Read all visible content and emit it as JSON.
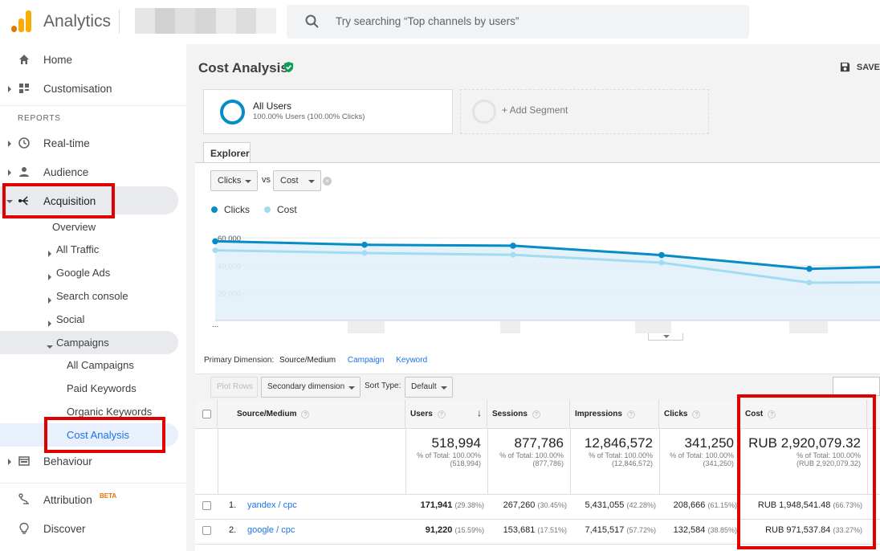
{
  "app": {
    "title": "Analytics",
    "search_placeholder": "Try searching “Top channels by users”"
  },
  "sidebar": {
    "home": "Home",
    "customisation": "Customisation",
    "reports_heading": "REPORTS",
    "realtime": "Real-time",
    "audience": "Audience",
    "acquisition": "Acquisition",
    "overview": "Overview",
    "all_traffic": "All Traffic",
    "google_ads": "Google Ads",
    "search_console": "Search console",
    "social": "Social",
    "campaigns": "Campaigns",
    "all_campaigns": "All Campaigns",
    "paid_keywords": "Paid Keywords",
    "organic_keywords": "Organic Keywords",
    "cost_analysis": "Cost Analysis",
    "behaviour": "Behaviour",
    "attribution": "Attribution",
    "attribution_badge": "BETA",
    "discover": "Discover"
  },
  "header": {
    "title": "Cost Analysis",
    "save": "SAVE"
  },
  "segments": {
    "all_users": "All Users",
    "all_users_sub": "100.00% Users (100.00% Clicks)",
    "add_segment": "+ Add Segment"
  },
  "explorer": {
    "tab": "Explorer",
    "metric1": "Clicks",
    "vs": "vs",
    "metric2": "Cost",
    "legend1": "Clicks",
    "legend2": "Cost",
    "ellipsis": "..."
  },
  "colors": {
    "clicks": "#058dc7",
    "cost": "#a2dcf0",
    "brand_orange": "#f9ab00",
    "highlight": "#e00000"
  },
  "chart_data": {
    "type": "line",
    "y_ticks": [
      "60,000",
      "40,000",
      "20,000"
    ],
    "ylim": [
      0,
      70000
    ],
    "series": [
      {
        "name": "Clicks",
        "values": [
          57500,
          55000,
          54300,
          47500,
          37500,
          38800
        ]
      },
      {
        "name": "Cost",
        "values": [
          51000,
          49000,
          47700,
          42000,
          27500,
          27600
        ]
      }
    ]
  },
  "controls": {
    "primary_label": "Primary Dimension:",
    "primary_current": "Source/Medium",
    "primary_link1": "Campaign",
    "primary_link2": "Keyword",
    "plot_rows": "Plot Rows",
    "secondary": "Secondary dimension",
    "sort_type_label": "Sort Type:",
    "sort_type_value": "Default"
  },
  "table": {
    "columns": [
      "Source/Medium",
      "Users",
      "Sessions",
      "Impressions",
      "Clicks",
      "Cost"
    ],
    "totals": {
      "users": "518,994",
      "users_sub1": "% of Total: 100.00%",
      "users_sub2": "(518,994)",
      "sessions": "877,786",
      "sessions_sub1": "% of Total: 100.00%",
      "sessions_sub2": "(877,786)",
      "impressions": "12,846,572",
      "impressions_sub1": "% of Total: 100.00%",
      "impressions_sub2": "(12,846,572)",
      "clicks": "341,250",
      "clicks_sub1": "% of Total: 100.00%",
      "clicks_sub2": "(341,250)",
      "cost": "RUB 2,920,079.32",
      "cost_sub1": "% of Total: 100.00%",
      "cost_sub2": "(RUB 2,920,079.32)"
    },
    "rows": [
      {
        "num": "1.",
        "source": "yandex / cpc",
        "users": "171,941",
        "users_pct": "(29.38%)",
        "sessions": "267,260",
        "sessions_pct": "(30.45%)",
        "impressions": "5,431,055",
        "impressions_pct": "(42.28%)",
        "clicks": "208,666",
        "clicks_pct": "(61.15%)",
        "cost": "RUB 1,948,541.48",
        "cost_pct": "(66.73%)"
      },
      {
        "num": "2.",
        "source": "google / cpc",
        "users": "91,220",
        "users_pct": "(15.59%)",
        "sessions": "153,681",
        "sessions_pct": "(17.51%)",
        "impressions": "7,415,517",
        "impressions_pct": "(57.72%)",
        "clicks": "132,584",
        "clicks_pct": "(38.85%)",
        "cost": "RUB 971,537.84",
        "cost_pct": "(33.27%)"
      }
    ]
  }
}
